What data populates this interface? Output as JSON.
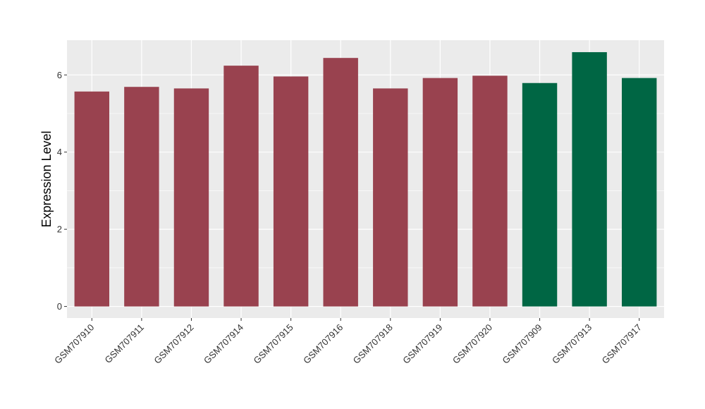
{
  "chart_data": {
    "type": "bar",
    "title": "",
    "xlabel": "",
    "ylabel": "Expression Level",
    "ylim": [
      -0.3,
      6.9
    ],
    "yticks": [
      0,
      2,
      4,
      6
    ],
    "ytick_labels": [
      "0",
      "2",
      "4",
      "6"
    ],
    "grid": true,
    "legend": "none",
    "categories": [
      "GSM707910",
      "GSM707911",
      "GSM707912",
      "GSM707914",
      "GSM707915",
      "GSM707916",
      "GSM707918",
      "GSM707919",
      "GSM707920",
      "GSM707909",
      "GSM707913",
      "GSM707917"
    ],
    "values": [
      5.57,
      5.69,
      5.65,
      6.24,
      5.96,
      6.44,
      5.65,
      5.92,
      5.98,
      5.79,
      6.59,
      5.92
    ],
    "groups": [
      "a",
      "a",
      "a",
      "a",
      "a",
      "a",
      "a",
      "a",
      "a",
      "b",
      "b",
      "b"
    ],
    "group_colors": {
      "a": "#99424f",
      "b": "#006644"
    },
    "panel_background": "#ebebeb",
    "gridline_color": "#ffffff"
  }
}
